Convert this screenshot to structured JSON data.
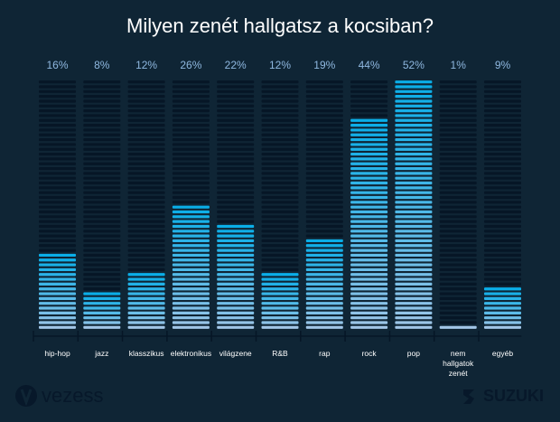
{
  "chart_data": {
    "type": "bar",
    "title": "Milyen zenét hallgatsz a kocsiban?",
    "categories": [
      "hip-hop",
      "jazz",
      "klasszikus",
      "elektronikus",
      "világzene",
      "R&B",
      "rap",
      "rock",
      "pop",
      "nem hallgatok zenét",
      "egyéb"
    ],
    "values": [
      16,
      8,
      12,
      26,
      22,
      12,
      19,
      44,
      52,
      1,
      9
    ],
    "value_labels": [
      "16%",
      "8%",
      "12%",
      "26%",
      "22%",
      "12%",
      "19%",
      "44%",
      "52%",
      "1%",
      "9%"
    ],
    "ylim": [
      0,
      52
    ],
    "grid": false,
    "colors": {
      "empty": "#061626",
      "fill_top": "#0aaee8",
      "fill_bottom": "#a2c6e8",
      "label": "#8fb8e0",
      "background": "#0f2535"
    }
  },
  "logos": {
    "left": "vezess",
    "right": "SUZUKI"
  }
}
